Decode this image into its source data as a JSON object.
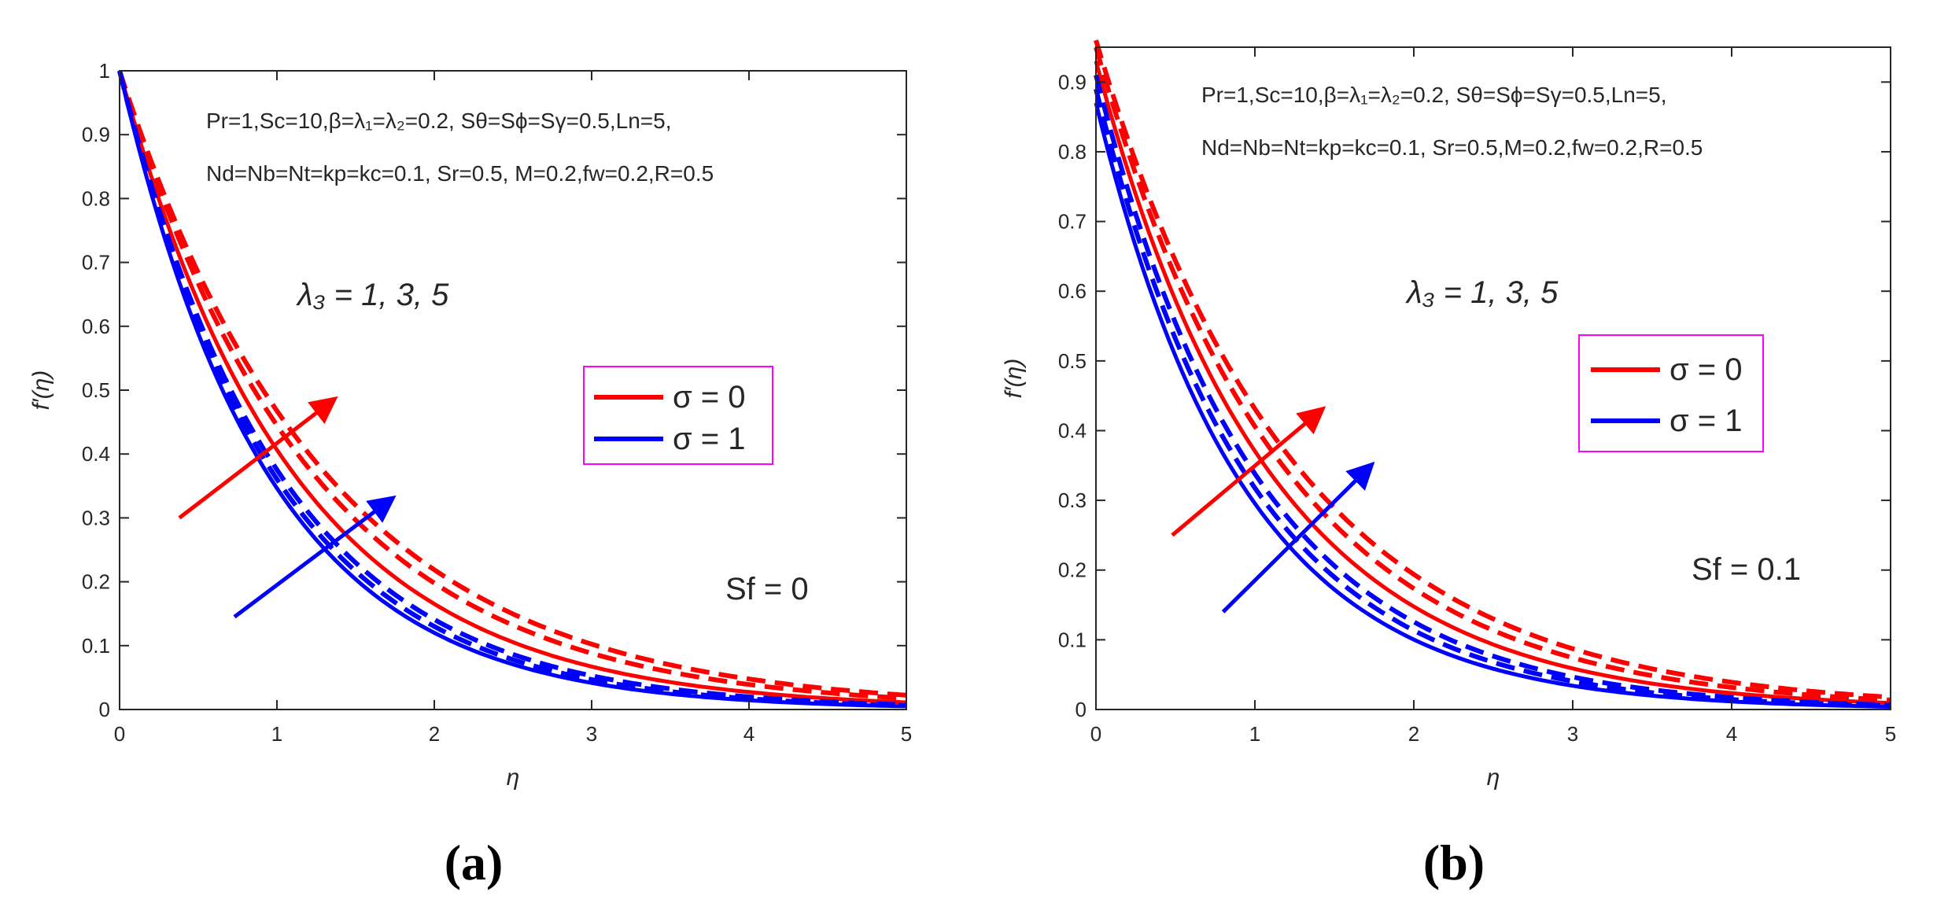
{
  "chart_data": [
    {
      "type": "line",
      "panel": "a",
      "caption": "(a)",
      "xlabel": "η",
      "ylabel": "f′(η)",
      "xlim": [
        0,
        5
      ],
      "ylim": [
        0,
        1
      ],
      "xticks": [
        "0",
        "1",
        "2",
        "3",
        "4",
        "5"
      ],
      "yticks": [
        "0",
        "0.1",
        "0.2",
        "0.3",
        "0.4",
        "0.5",
        "0.6",
        "0.7",
        "0.8",
        "0.9",
        "1"
      ],
      "param_line1": "Pr=1,Sc=10,β=λ₁=λ₂=0.2, Sθ=Sϕ=Sγ=0.5,Ln=5,",
      "param_line2": "Nd=Nb=Nt=kp=kc=0.1, Sr=0.5, M=0.2,fw=0.2,R=0.5",
      "lambda_text": "λ₃ = 1, 3, 5",
      "sf_text": "Sf = 0",
      "legend": [
        {
          "label": "σ = 0",
          "color": "#ff0000"
        },
        {
          "label": "σ = 1",
          "color": "#0000ff"
        }
      ],
      "series": [
        {
          "name": "σ = 0, λ3 = 1",
          "color": "#ff0000",
          "style": "solid",
          "start": 1.0,
          "decay": 0.9
        },
        {
          "name": "σ = 0, λ3 = 3",
          "color": "#ff0000",
          "style": "dashed",
          "start": 1.0,
          "decay": 0.81
        },
        {
          "name": "σ = 0, λ3 = 5",
          "color": "#ff0000",
          "style": "dashed",
          "start": 1.0,
          "decay": 0.76
        },
        {
          "name": "σ = 1, λ3 = 1",
          "color": "#0000ff",
          "style": "solid",
          "start": 1.0,
          "decay": 1.06
        },
        {
          "name": "σ = 1, λ3 = 3",
          "color": "#0000ff",
          "style": "dashed",
          "start": 1.0,
          "decay": 1.02
        },
        {
          "name": "σ = 1, λ3 = 5",
          "color": "#0000ff",
          "style": "dashed",
          "start": 1.0,
          "decay": 0.98
        }
      ],
      "arrows": [
        {
          "color": "#ff0000",
          "from": [
            0.38,
            0.3
          ],
          "to": [
            1.36,
            0.485
          ]
        },
        {
          "color": "#0000ff",
          "from": [
            0.73,
            0.145
          ],
          "to": [
            1.73,
            0.33
          ]
        }
      ]
    },
    {
      "type": "line",
      "panel": "b",
      "caption": "(b)",
      "xlabel": "η",
      "ylabel": "f′(η)",
      "xlim": [
        0,
        5
      ],
      "ylim": [
        0,
        0.95
      ],
      "xticks": [
        "0",
        "1",
        "2",
        "3",
        "4",
        "5"
      ],
      "yticks": [
        "0",
        "0.1",
        "0.2",
        "0.3",
        "0.4",
        "0.5",
        "0.6",
        "0.7",
        "0.8",
        "0.9"
      ],
      "param_line1": "Pr=1,Sc=10,β=λ₁=λ₂=0.2, Sθ=Sϕ=Sγ=0.5,Ln=5,",
      "param_line2": "Nd=Nb=Nt=kp=kc=0.1, Sr=0.5,M=0.2,fw=0.2,R=0.5",
      "lambda_text": "λ₃ = 1, 3, 5",
      "sf_text": "Sf = 0.1",
      "legend": [
        {
          "label": "σ = 0",
          "color": "#ff0000"
        },
        {
          "label": "σ = 1",
          "color": "#0000ff"
        }
      ],
      "series": [
        {
          "name": "σ = 0, λ3 = 1",
          "color": "#ff0000",
          "style": "solid",
          "start": 0.93,
          "decay": 0.92
        },
        {
          "name": "σ = 0, λ3 = 3",
          "color": "#ff0000",
          "style": "dashed",
          "start": 0.95,
          "decay": 0.85
        },
        {
          "name": "σ = 0, λ3 = 5",
          "color": "#ff0000",
          "style": "dashed",
          "start": 0.96,
          "decay": 0.8
        },
        {
          "name": "σ = 1, λ3 = 1",
          "color": "#0000ff",
          "style": "solid",
          "start": 0.87,
          "decay": 1.08
        },
        {
          "name": "σ = 1, λ3 = 3",
          "color": "#0000ff",
          "style": "dashed",
          "start": 0.89,
          "decay": 1.03
        },
        {
          "name": "σ = 1, λ3 = 5",
          "color": "#0000ff",
          "style": "dashed",
          "start": 0.91,
          "decay": 0.99
        }
      ],
      "arrows": [
        {
          "color": "#ff0000",
          "from": [
            0.48,
            0.25
          ],
          "to": [
            1.42,
            0.43
          ]
        },
        {
          "color": "#0000ff",
          "from": [
            0.8,
            0.14
          ],
          "to": [
            1.73,
            0.35
          ]
        }
      ]
    }
  ]
}
